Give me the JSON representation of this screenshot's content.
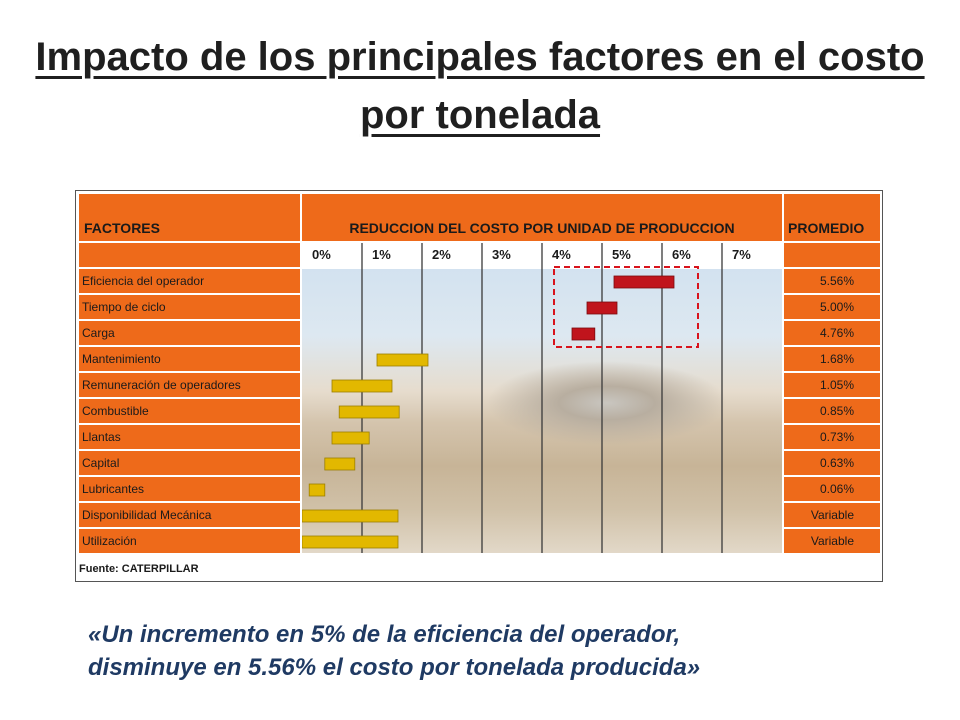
{
  "title": "Impacto de los principales factores en el costo por tonelada",
  "table": {
    "header_factors": "FACTORES",
    "header_chart": "REDUCCION DEL COSTO POR UNIDAD DE PRODUCCION",
    "header_avg": "PROMEDIO",
    "source": "Fuente: CATERPILLAR"
  },
  "chart_data": {
    "type": "bar",
    "orientation": "horizontal-range",
    "x_ticks": [
      "0%",
      "1%",
      "2%",
      "3%",
      "4%",
      "5%",
      "6%",
      "7%"
    ],
    "xlim": [
      0,
      8
    ],
    "colors": {
      "highlight": "#c0141c",
      "normal": "#e2b800",
      "header": "#ee6a1a"
    },
    "highlight_box": {
      "rows": [
        0,
        2
      ],
      "x_range": [
        4.2,
        6.6
      ],
      "style": "dashed",
      "color": "#d8131c"
    },
    "rows": [
      {
        "label": "Eficiencia del operador",
        "avg": "5.56%",
        "start": 5.2,
        "end": 6.2,
        "color": "#c0141c"
      },
      {
        "label": "Tiempo de ciclo",
        "avg": "5.00%",
        "start": 4.75,
        "end": 5.25,
        "color": "#c0141c"
      },
      {
        "label": "Carga",
        "avg": "4.76%",
        "start": 4.5,
        "end": 4.88,
        "color": "#c0141c"
      },
      {
        "label": "Mantenimiento",
        "avg": "1.68%",
        "start": 1.25,
        "end": 2.1,
        "color": "#e2b800"
      },
      {
        "label": "Remuneración de operadores",
        "avg": "1.05%",
        "start": 0.5,
        "end": 1.5,
        "color": "#e2b800"
      },
      {
        "label": "Combustible",
        "avg": "0.85%",
        "start": 0.62,
        "end": 1.62,
        "color": "#e2b800"
      },
      {
        "label": "Llantas",
        "avg": "0.73%",
        "start": 0.5,
        "end": 1.12,
        "color": "#e2b800"
      },
      {
        "label": "Capital",
        "avg": "0.63%",
        "start": 0.38,
        "end": 0.88,
        "color": "#e2b800"
      },
      {
        "label": "Lubricantes",
        "avg": "0.06%",
        "start": 0.12,
        "end": 0.38,
        "color": "#e2b800"
      },
      {
        "label": "Disponibilidad Mecánica",
        "avg": "Variable",
        "start": 0.0,
        "end": 1.6,
        "color": "#e2b800"
      },
      {
        "label": "Utilización",
        "avg": "Variable",
        "start": 0.0,
        "end": 1.6,
        "color": "#e2b800"
      }
    ]
  },
  "quote_line1": "«Un incremento en 5% de la eficiencia del operador,",
  "quote_line2": "disminuye en 5.56%  el costo por tonelada producida»"
}
